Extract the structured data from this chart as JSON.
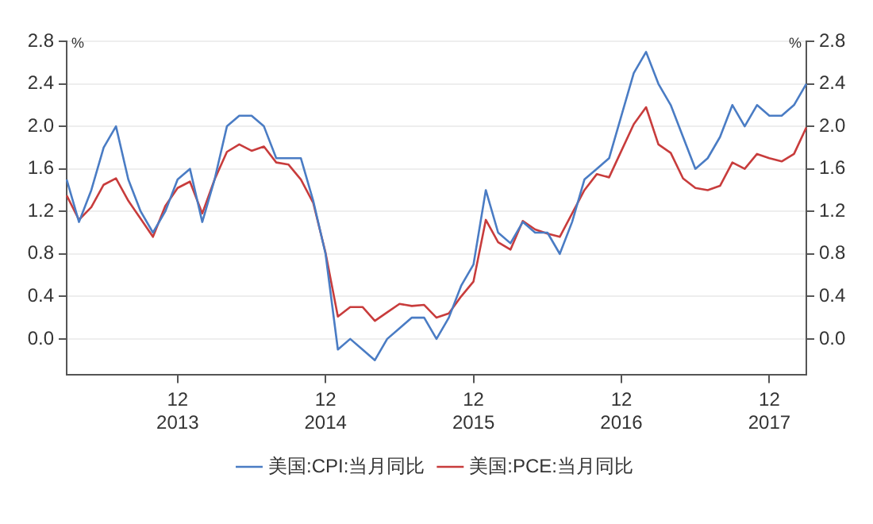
{
  "chart_data": {
    "type": "line",
    "ylabel": "%",
    "y2label": "%",
    "categories": [
      null,
      null,
      null,
      null,
      null,
      null,
      null,
      null,
      null,
      "12\n2013",
      null,
      null,
      null,
      null,
      null,
      null,
      null,
      null,
      null,
      null,
      null,
      "12\n2014",
      null,
      null,
      null,
      null,
      null,
      null,
      null,
      null,
      null,
      null,
      null,
      "12\n2015",
      null,
      null,
      null,
      null,
      null,
      null,
      null,
      null,
      null,
      null,
      null,
      "12\n2016",
      null,
      null,
      null,
      null,
      null,
      null,
      null,
      null,
      null,
      null,
      null,
      "12\n2017",
      null,
      null,
      null
    ],
    "series": [
      {
        "name": "美国:CPI:当月同比",
        "color": "#4a7cc4",
        "values": [
          1.5,
          1.1,
          1.4,
          1.8,
          2.0,
          1.5,
          1.2,
          1.0,
          1.2,
          1.5,
          1.6,
          1.1,
          1.5,
          2.0,
          2.1,
          2.1,
          2.0,
          1.7,
          1.7,
          1.7,
          1.3,
          0.8,
          -0.1,
          0.0,
          -0.1,
          -0.2,
          0.0,
          0.1,
          0.2,
          0.2,
          0.0,
          0.2,
          0.5,
          0.7,
          1.4,
          1.0,
          0.9,
          1.1,
          1.0,
          1.0,
          0.8,
          1.1,
          1.5,
          1.6,
          1.7,
          2.1,
          2.5,
          2.7,
          2.4,
          2.2,
          1.9,
          1.6,
          1.7,
          1.9,
          2.2,
          2.0,
          2.2,
          2.1,
          2.1,
          2.2,
          2.4
        ]
      },
      {
        "name": "美国:PCE:当月同比",
        "color": "#c83c3c",
        "values": [
          1.35,
          1.12,
          1.24,
          1.45,
          1.51,
          1.3,
          1.13,
          0.96,
          1.25,
          1.42,
          1.48,
          1.18,
          1.5,
          1.76,
          1.83,
          1.77,
          1.81,
          1.66,
          1.64,
          1.5,
          1.28,
          0.81,
          0.21,
          0.3,
          0.3,
          0.17,
          0.25,
          0.33,
          0.31,
          0.32,
          0.2,
          0.24,
          0.4,
          0.54,
          1.12,
          0.91,
          0.84,
          1.11,
          1.03,
          0.99,
          0.96,
          1.18,
          1.4,
          1.55,
          1.52,
          1.77,
          2.02,
          2.18,
          1.83,
          1.75,
          1.51,
          1.42,
          1.4,
          1.44,
          1.66,
          1.6,
          1.74,
          1.7,
          1.67,
          1.74,
          1.99
        ]
      }
    ],
    "ylim": [
      -0.34,
      2.8
    ],
    "yticks": [
      {
        "value": 0,
        "label": "0.0"
      },
      0.4,
      0.8,
      1.2,
      1.6,
      {
        "value": 2,
        "label": "2.0"
      },
      2.4,
      2.8
    ],
    "y2lim": [
      -0.34,
      2.8
    ],
    "y2ticks": [
      {
        "value": 0,
        "label": "0.0"
      },
      0.4,
      0.8,
      1.2,
      1.6,
      {
        "value": 2,
        "label": "2.0"
      },
      2.4,
      2.8
    ],
    "grid": "y",
    "legend": "bottom",
    "marker": "none",
    "line_style": "solid"
  }
}
